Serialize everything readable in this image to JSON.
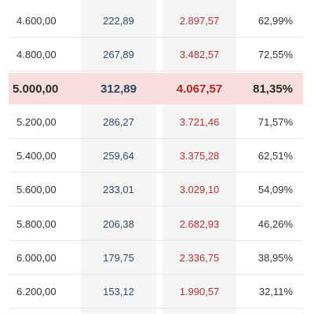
{
  "rows": [
    {
      "amount": "4.600,00",
      "col2": "222,89",
      "col3": "2.897,57",
      "pct": "62,99%"
    },
    {
      "amount": "4.800,00",
      "col2": "267,89",
      "col3": "3.482,57",
      "pct": "72,55%"
    },
    {
      "amount": "5.000,00",
      "col2": "312,89",
      "col3": "4.067,57",
      "pct": "81,35%",
      "highlighted": true
    },
    {
      "amount": "5.200,00",
      "col2": "286,27",
      "col3": "3.721,46",
      "pct": "71,57%"
    },
    {
      "amount": "5.400,00",
      "col2": "259,64",
      "col3": "3.375,28",
      "pct": "62,51%"
    },
    {
      "amount": "5.600,00",
      "col2": "233,01",
      "col3": "3.029,10",
      "pct": "54,09%"
    },
    {
      "amount": "5.800,00",
      "col2": "206,38",
      "col3": "2.682,93",
      "pct": "46,26%"
    },
    {
      "amount": "6.000,00",
      "col2": "179,75",
      "col3": "2.336,75",
      "pct": "38,95%"
    },
    {
      "amount": "6.200,00",
      "col2": "153,12",
      "col3": "1.990,57",
      "pct": "32,11%"
    }
  ],
  "colors": {
    "highlight_bg": "#f8dedd",
    "column_shade": "#f5f5f6",
    "blue_text": "#2e4a66",
    "red_text": "#b8322f"
  }
}
